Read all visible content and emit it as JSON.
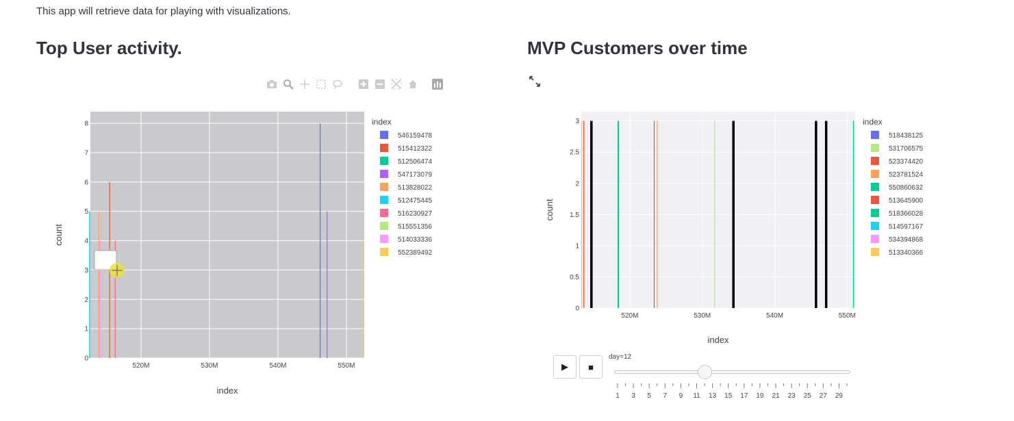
{
  "intro_text": "This app will retrieve data for playing with visualizations.",
  "left_title": "Top User activity.",
  "right_title": "MVP Customers over time",
  "modebar_icons": [
    "camera-icon",
    "zoom-icon",
    "pan-icon",
    "box-select-icon",
    "lasso-icon",
    "zoom-in-icon",
    "zoom-out-icon",
    "autoscale-icon",
    "home-icon",
    "plotly-logo-icon"
  ],
  "colors": {
    "plot_bg_left": "#c9cacd",
    "plot_bg_right": "#eff1f5",
    "grid": "#ffffff",
    "highlight": "#e8e33c"
  },
  "slider": {
    "label": "day=12",
    "play_label": "▶",
    "stop_label": "■",
    "value": 12,
    "min": 1,
    "max": 30,
    "tick_labels": [
      "1",
      "3",
      "5",
      "7",
      "9",
      "11",
      "13",
      "15",
      "17",
      "19",
      "21",
      "23",
      "25",
      "27",
      "29"
    ]
  },
  "chart_data": [
    {
      "type": "bar",
      "xlabel": "index",
      "ylabel": "count",
      "ylim": [
        0,
        8.4
      ],
      "xlim": [
        512.6,
        552.6
      ],
      "x_tick_labels": [
        "520M",
        "530M",
        "540M",
        "550M"
      ],
      "x_ticks": [
        520,
        530,
        540,
        550
      ],
      "y_ticks": [
        0,
        1,
        2,
        3,
        4,
        5,
        6,
        7,
        8
      ],
      "legend_title": "index",
      "grid": true,
      "legend_position": "right",
      "series": [
        {
          "name": "546159478",
          "x": 546.16,
          "value": 8,
          "color": "#636efa"
        },
        {
          "name": "515412322",
          "x": 515.41,
          "value": 6,
          "color": "#ef553b"
        },
        {
          "name": "512506474",
          "x": 512.51,
          "value": 5,
          "color": "#00cc96"
        },
        {
          "name": "547173079",
          "x": 547.17,
          "value": 5,
          "color": "#ab63fa"
        },
        {
          "name": "513828022",
          "x": 513.83,
          "value": 5,
          "color": "#ffa15a"
        },
        {
          "name": "512475445",
          "x": 512.48,
          "value": 5,
          "color": "#19d3f3"
        },
        {
          "name": "516230927",
          "x": 516.23,
          "value": 4,
          "color": "#ff6692"
        },
        {
          "name": "515551356",
          "x": 515.55,
          "value": 4,
          "color": "#b6e880"
        },
        {
          "name": "514033336",
          "x": 514.03,
          "value": 4,
          "color": "#ff97ff"
        },
        {
          "name": "552389492",
          "x": 552.39,
          "value": 4,
          "color": "#fecb52"
        }
      ]
    },
    {
      "type": "bar",
      "xlabel": "index",
      "ylabel": "count",
      "ylim": [
        0,
        3.15
      ],
      "xlim": [
        513.3,
        551.1
      ],
      "x_tick_labels": [
        "520M",
        "530M",
        "540M",
        "550M"
      ],
      "x_ticks": [
        520,
        530,
        540,
        550
      ],
      "y_ticks": [
        0,
        0.5,
        1,
        1.5,
        2,
        2.5,
        3
      ],
      "y_tick_labels": [
        "0",
        "0.5",
        "1",
        "1.5",
        "2",
        "2.5",
        "3"
      ],
      "legend_title": "index",
      "grid": true,
      "legend_position": "right",
      "series": [
        {
          "name": "518438125",
          "x": 518.44,
          "value": 3,
          "color": "#636efa"
        },
        {
          "name": "531706575",
          "x": 531.71,
          "value": 3,
          "color": "#b6e880"
        },
        {
          "name": "523374420",
          "x": 523.37,
          "value": 3,
          "color": "#ef553b"
        },
        {
          "name": "523781524",
          "x": 523.78,
          "value": 3,
          "color": "#ffa15a"
        },
        {
          "name": "550860632",
          "x": 550.86,
          "value": 3,
          "color": "#00cc96"
        },
        {
          "name": "513645900",
          "x": 513.65,
          "value": 3,
          "color": "#ef553b"
        },
        {
          "name": "518366028",
          "x": 518.37,
          "value": 3,
          "color": "#00cc96"
        },
        {
          "name": "514597167",
          "x": 514.6,
          "value": 3,
          "color": "#19d3f3"
        },
        {
          "name": "534394868",
          "x": 534.39,
          "value": 3,
          "color": "#ff97ff"
        },
        {
          "name": "513340366",
          "x": 513.34,
          "value": 3,
          "color": "#fecb52"
        }
      ],
      "black_bars": [
        514.7,
        534.3,
        545.7,
        547.1
      ]
    }
  ]
}
